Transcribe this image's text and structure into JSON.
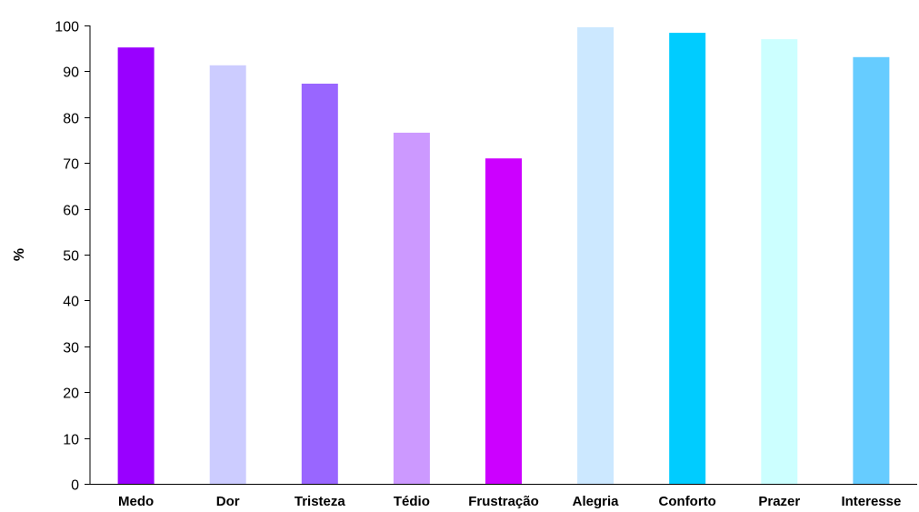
{
  "chart_data": {
    "type": "bar",
    "title": "",
    "xlabel": "",
    "ylabel": "%",
    "ylim": [
      0,
      100
    ],
    "yticks": [
      0,
      10,
      20,
      30,
      40,
      50,
      60,
      70,
      80,
      90,
      100
    ],
    "grid": false,
    "legend": "none",
    "categories": [
      "Medo",
      "Dor",
      "Tristeza",
      "Tédio",
      "Frustração",
      "Alegria",
      "Conforto",
      "Prazer",
      "Interesse"
    ],
    "values": [
      95.2,
      91.3,
      87.3,
      76.6,
      71.0,
      99.6,
      98.4,
      97.0,
      93.1
    ],
    "colors": [
      "#9900FF",
      "#CCCCFF",
      "#9966FF",
      "#CC99FF",
      "#CC00FF",
      "#CCE8FF",
      "#00CCFF",
      "#CCFFFF",
      "#66CCFF"
    ]
  }
}
